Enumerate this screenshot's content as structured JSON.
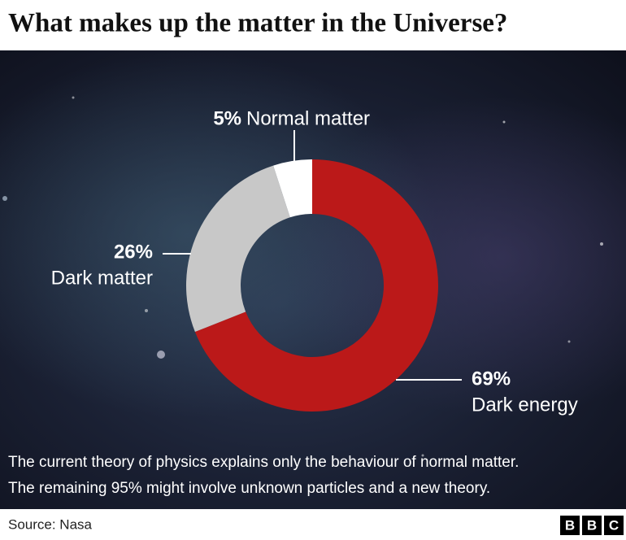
{
  "chart_data": {
    "type": "pie",
    "donut": true,
    "title": "What makes up the matter in the Universe?",
    "categories": [
      "Dark energy",
      "Dark matter",
      "Normal matter"
    ],
    "values": [
      69,
      26,
      5
    ],
    "value_labels": [
      "69%",
      "26%",
      "5%"
    ],
    "colors": [
      "#bb1919",
      "#c8c8c8",
      "#ffffff"
    ],
    "annotations": [
      "The current theory of physics explains only the behaviour of normal matter.",
      "The remaining 95% might involve unknown particles and a new theory."
    ],
    "source": "Source: Nasa"
  },
  "logo": [
    "B",
    "B",
    "C"
  ]
}
